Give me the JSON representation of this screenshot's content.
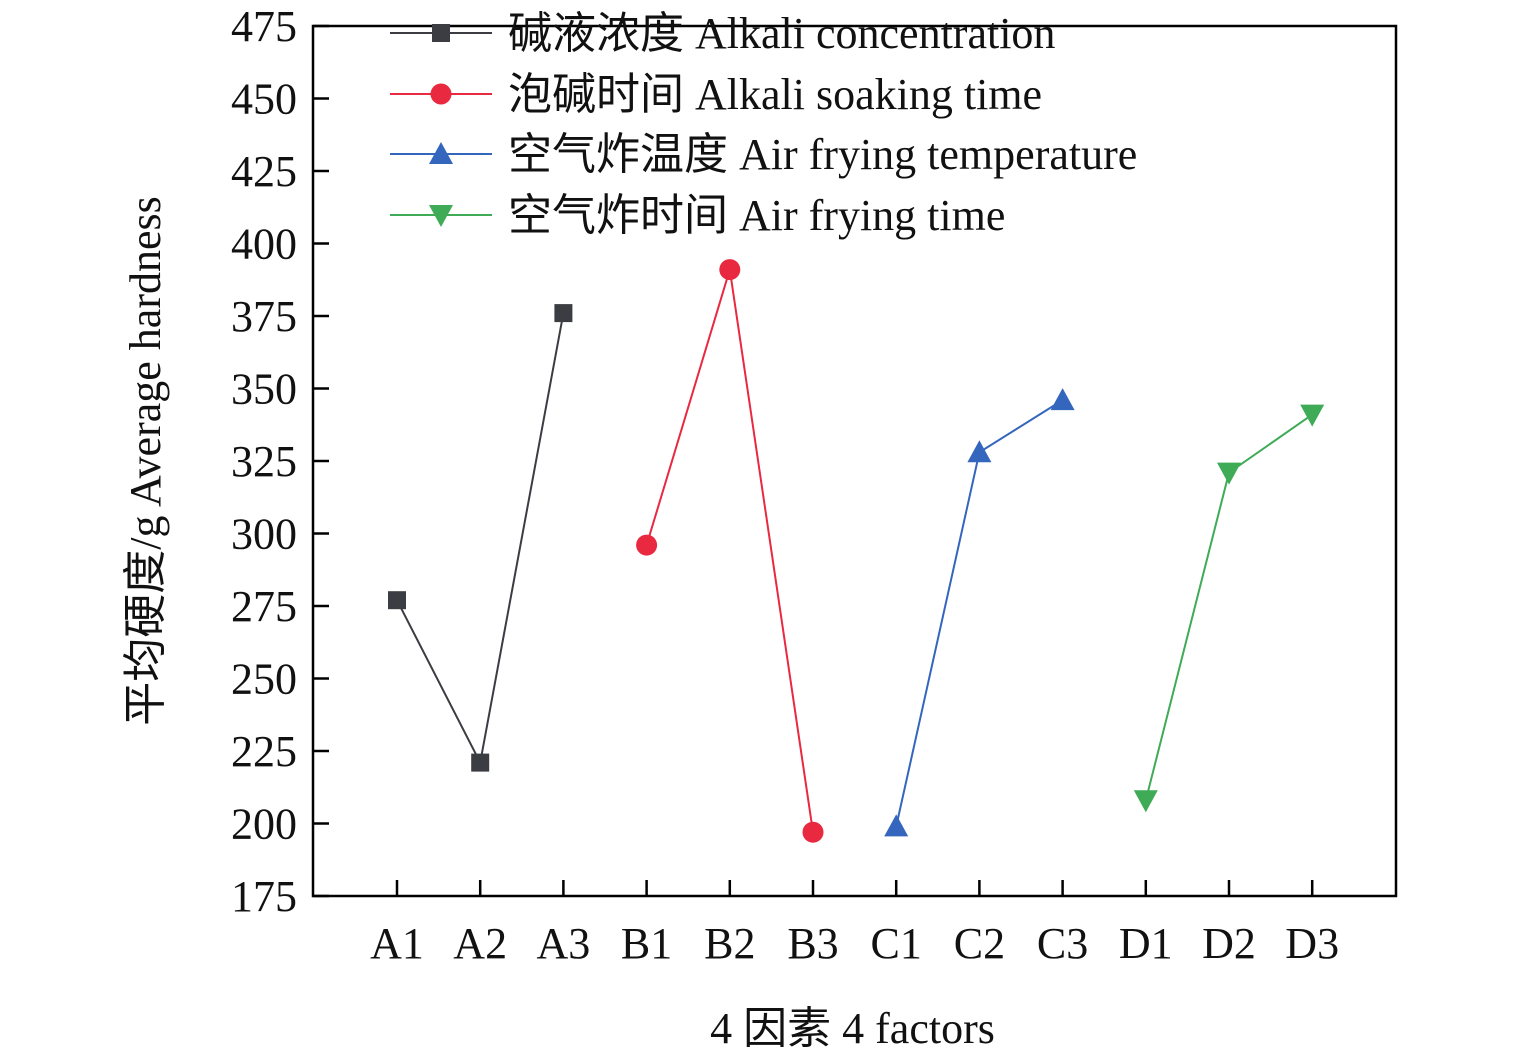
{
  "chart_data": {
    "type": "line",
    "title": "",
    "xlabel": "4 因素 4 factors",
    "ylabel": "平均硬度/g Average hardness",
    "categories": [
      "A1",
      "A2",
      "A3",
      "B1",
      "B2",
      "B3",
      "C1",
      "C2",
      "C3",
      "D1",
      "D2",
      "D3"
    ],
    "ylim": [
      175,
      475
    ],
    "yticks": [
      175,
      200,
      225,
      250,
      275,
      300,
      325,
      350,
      375,
      400,
      425,
      450,
      475
    ],
    "legend_position": "top-center",
    "series": [
      {
        "name": "碱液浓度 Alkali concentration",
        "color": "#3b3d42",
        "marker": "square",
        "x": [
          "A1",
          "A2",
          "A3"
        ],
        "values": [
          277,
          221,
          376
        ]
      },
      {
        "name": "泡碱时间 Alkali soaking time",
        "color": "#e8293f",
        "marker": "circle",
        "x": [
          "B1",
          "B2",
          "B3"
        ],
        "values": [
          296,
          391,
          197
        ]
      },
      {
        "name": "空气炸温度 Air frying temperature",
        "color": "#3566bd",
        "marker": "triangle-up",
        "x": [
          "C1",
          "C2",
          "C3"
        ],
        "values": [
          199,
          328,
          346
        ]
      },
      {
        "name": "空气炸时间 Air frying time",
        "color": "#3fab56",
        "marker": "triangle-down",
        "x": [
          "D1",
          "D2",
          "D3"
        ],
        "values": [
          208,
          321,
          341
        ]
      }
    ]
  }
}
